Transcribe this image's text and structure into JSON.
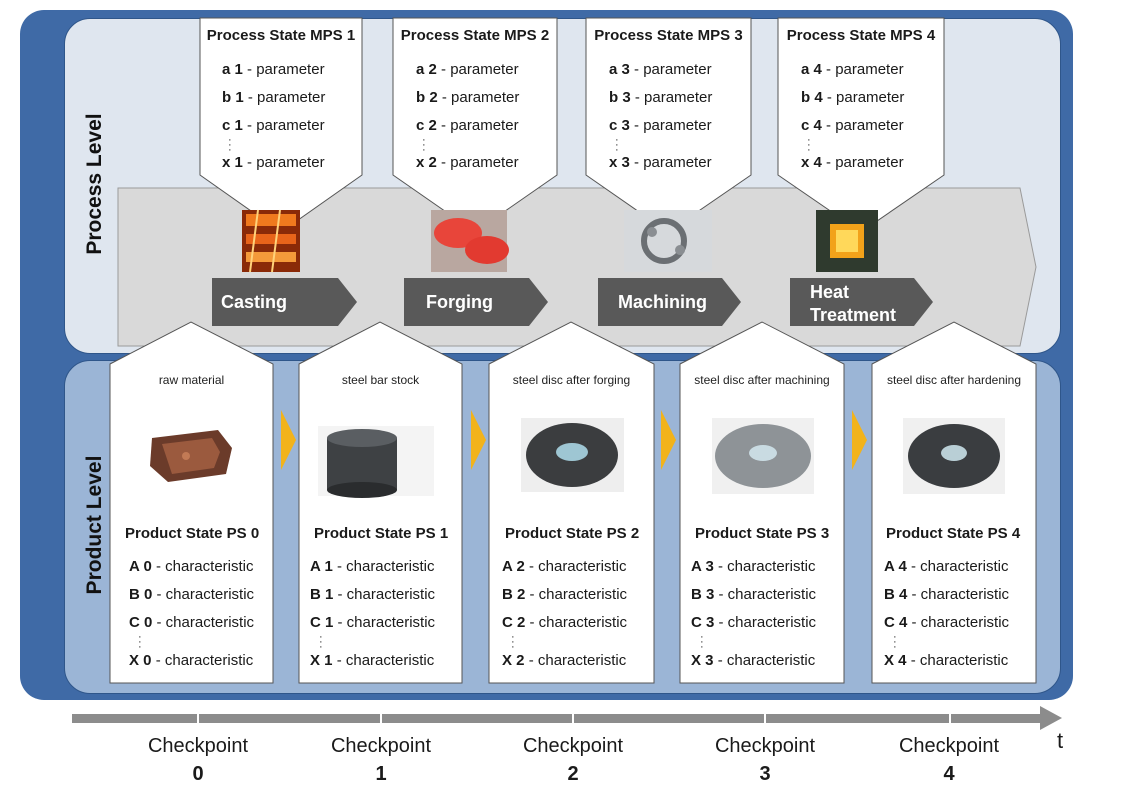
{
  "levels": {
    "process": "Process Level",
    "product": "Product Level"
  },
  "process_states": [
    {
      "title": "Process State MPS 1",
      "params": [
        {
          "id": "a 1",
          "label": "- parameter"
        },
        {
          "id": "b 1",
          "label": "- parameter"
        },
        {
          "id": "c 1",
          "label": "- parameter"
        },
        {
          "id": "x 1",
          "label": "- parameter"
        }
      ]
    },
    {
      "title": "Process State MPS 2",
      "params": [
        {
          "id": "a 2",
          "label": "- parameter"
        },
        {
          "id": "b 2",
          "label": "- parameter"
        },
        {
          "id": "c 2",
          "label": "- parameter"
        },
        {
          "id": "x 2",
          "label": "- parameter"
        }
      ]
    },
    {
      "title": "Process State MPS 3",
      "params": [
        {
          "id": "a 3",
          "label": "- parameter"
        },
        {
          "id": "b 3",
          "label": "- parameter"
        },
        {
          "id": "c 3",
          "label": "- parameter"
        },
        {
          "id": "x 3",
          "label": "- parameter"
        }
      ]
    },
    {
      "title": "Process State MPS 4",
      "params": [
        {
          "id": "a 4",
          "label": "- parameter"
        },
        {
          "id": "b 4",
          "label": "- parameter"
        },
        {
          "id": "c 4",
          "label": "- parameter"
        },
        {
          "id": "x 4",
          "label": "- parameter"
        }
      ]
    }
  ],
  "processes": [
    {
      "line1": "Casting",
      "line2": "",
      "image": "casting-photo"
    },
    {
      "line1": "Forging",
      "line2": "",
      "image": "forging-photo"
    },
    {
      "line1": "Machining",
      "line2": "",
      "image": "machining-photo"
    },
    {
      "line1": "Heat",
      "line2": "Treatment",
      "image": "heat-treatment-photo"
    }
  ],
  "product_states": [
    {
      "caption": "raw material",
      "title": "Product State PS 0",
      "chars": [
        {
          "id": "A 0",
          "label": "- characteristic"
        },
        {
          "id": "B 0",
          "label": "- characteristic"
        },
        {
          "id": "C 0",
          "label": "- characteristic"
        },
        {
          "id": "X 0",
          "label": "- characteristic"
        }
      ]
    },
    {
      "caption": "steel bar stock",
      "title": "Product State PS 1",
      "chars": [
        {
          "id": "A 1",
          "label": "- characteristic"
        },
        {
          "id": "B 1",
          "label": "- characteristic"
        },
        {
          "id": "C 1",
          "label": "- characteristic"
        },
        {
          "id": "X 1",
          "label": "- characteristic"
        }
      ]
    },
    {
      "caption": "steel disc after forging",
      "title": "Product State PS 2",
      "chars": [
        {
          "id": "A 2",
          "label": "- characteristic"
        },
        {
          "id": "B 2",
          "label": "- characteristic"
        },
        {
          "id": "C 2",
          "label": "- characteristic"
        },
        {
          "id": "X 2",
          "label": "- characteristic"
        }
      ]
    },
    {
      "caption": "steel disc after machining",
      "title": "Product State PS 3",
      "chars": [
        {
          "id": "A 3",
          "label": "- characteristic"
        },
        {
          "id": "B 3",
          "label": "- characteristic"
        },
        {
          "id": "C 3",
          "label": "- characteristic"
        },
        {
          "id": "X 3",
          "label": "- characteristic"
        }
      ]
    },
    {
      "caption": "steel disc after hardening",
      "title": "Product State PS 4",
      "chars": [
        {
          "id": "A 4",
          "label": "- characteristic"
        },
        {
          "id": "B 4",
          "label": "- characteristic"
        },
        {
          "id": "C 4",
          "label": "- characteristic"
        },
        {
          "id": "X 4",
          "label": "- characteristic"
        }
      ]
    }
  ],
  "timeline": {
    "axis_label": "t",
    "checkpoints": [
      {
        "label": "Checkpoint",
        "number": "0"
      },
      {
        "label": "Checkpoint",
        "number": "1"
      },
      {
        "label": "Checkpoint",
        "number": "2"
      },
      {
        "label": "Checkpoint",
        "number": "3"
      },
      {
        "label": "Checkpoint",
        "number": "4"
      }
    ]
  },
  "colors": {
    "outer_panel": "#3f6aa6",
    "process_panel": "#dfe6ef",
    "product_panel": "#9bb5d6",
    "process_chain": "#d9d9d9",
    "process_arrow": "#595959",
    "flow_arrow": "#f2b31b",
    "timeline": "#8c8c8c"
  }
}
